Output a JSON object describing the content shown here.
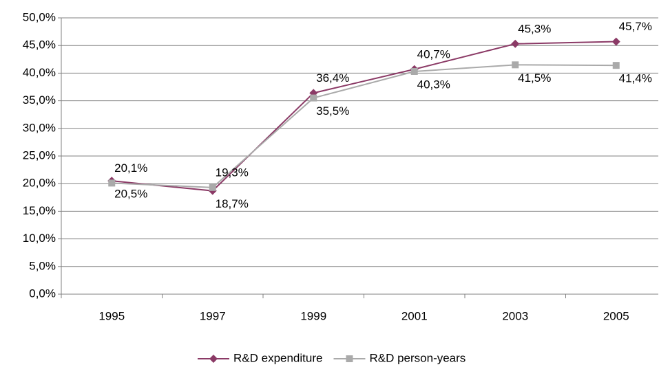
{
  "chart_data": {
    "type": "line",
    "categories": [
      "1995",
      "1997",
      "1999",
      "2001",
      "2003",
      "2005"
    ],
    "series": [
      {
        "name": "R&D expenditure",
        "color": "#8b3a66",
        "marker": "diamond",
        "values": [
          20.5,
          18.7,
          36.4,
          40.7,
          45.3,
          45.7
        ],
        "value_labels": [
          "20,5%",
          "18,7%",
          "36,4%",
          "40,7%",
          "45,3%",
          "45,7%"
        ]
      },
      {
        "name": "R&D person-years",
        "color": "#aaaaaa",
        "marker": "square",
        "values": [
          20.1,
          19.3,
          35.5,
          40.3,
          41.5,
          41.4
        ],
        "value_labels": [
          "20,1%",
          "19,3%",
          "35,5%",
          "40,3%",
          "41,5%",
          "41,4%"
        ]
      }
    ],
    "ylim": [
      0,
      50
    ],
    "yticks": [
      {
        "value": 0,
        "label": "0,0%"
      },
      {
        "value": 5,
        "label": "5,0%"
      },
      {
        "value": 10,
        "label": "10,0%"
      },
      {
        "value": 15,
        "label": "15,0%"
      },
      {
        "value": 20,
        "label": "20,0%"
      },
      {
        "value": 25,
        "label": "25,0%"
      },
      {
        "value": 30,
        "label": "30,0%"
      },
      {
        "value": 35,
        "label": "35,0%"
      },
      {
        "value": 40,
        "label": "40,0%"
      },
      {
        "value": 45,
        "label": "45,0%"
      },
      {
        "value": 50,
        "label": "50,0%"
      }
    ],
    "grid": true,
    "legend": "bottom"
  }
}
